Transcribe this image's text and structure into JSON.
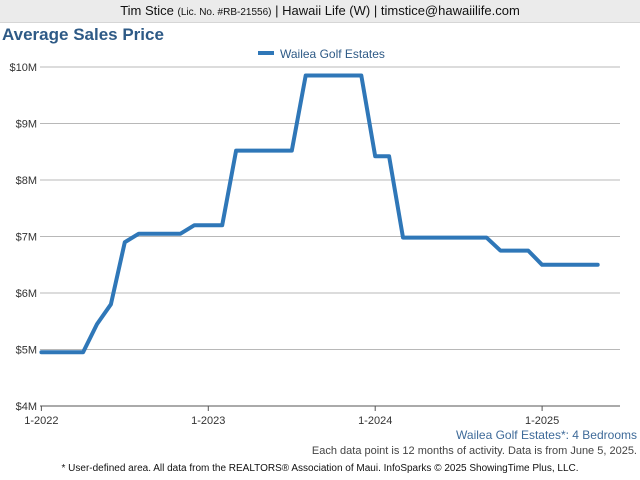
{
  "header": {
    "agent_name": "Tim Stice",
    "license": "(Lic. No. #RB-21556)",
    "company": "Hawaii Life (W)",
    "email": "timstice@hawaiilife.com",
    "separator": "|"
  },
  "chart_data": {
    "type": "line",
    "title": "Average Sales Price",
    "subtitle": "Wailea Golf Estates*: 4 Bedrooms",
    "note": "Each data point is 12 months of activity. Data is from June 5, 2025.",
    "xlabel": "",
    "ylabel": "",
    "legend_position": "top",
    "grid": true,
    "x_ticks": [
      "1-2022",
      "1-2023",
      "1-2024",
      "1-2025"
    ],
    "y_ticks": [
      "$4M",
      "$5M",
      "$6M",
      "$7M",
      "$8M",
      "$9M",
      "$10M"
    ],
    "ylim": [
      4000000,
      10000000
    ],
    "xlim": [
      "2022-01",
      "2025-06"
    ],
    "series": [
      {
        "name": "Wailea Golf Estates",
        "color": "#2f77b8",
        "points": [
          {
            "x": "2022-01",
            "y": 4950000
          },
          {
            "x": "2022-02",
            "y": 4950000
          },
          {
            "x": "2022-03",
            "y": 4950000
          },
          {
            "x": "2022-04",
            "y": 4950000
          },
          {
            "x": "2022-05",
            "y": 5450000
          },
          {
            "x": "2022-06",
            "y": 5800000
          },
          {
            "x": "2022-07",
            "y": 6900000
          },
          {
            "x": "2022-08",
            "y": 7050000
          },
          {
            "x": "2022-09",
            "y": 7050000
          },
          {
            "x": "2022-10",
            "y": 7050000
          },
          {
            "x": "2022-11",
            "y": 7050000
          },
          {
            "x": "2022-12",
            "y": 7200000
          },
          {
            "x": "2023-01",
            "y": 7200000
          },
          {
            "x": "2023-02",
            "y": 7200000
          },
          {
            "x": "2023-03",
            "y": 8520000
          },
          {
            "x": "2023-04",
            "y": 8520000
          },
          {
            "x": "2023-05",
            "y": 8520000
          },
          {
            "x": "2023-06",
            "y": 8520000
          },
          {
            "x": "2023-07",
            "y": 8520000
          },
          {
            "x": "2023-08",
            "y": 9850000
          },
          {
            "x": "2023-09",
            "y": 9850000
          },
          {
            "x": "2023-10",
            "y": 9850000
          },
          {
            "x": "2023-11",
            "y": 9850000
          },
          {
            "x": "2023-12",
            "y": 9850000
          },
          {
            "x": "2024-01",
            "y": 8420000
          },
          {
            "x": "2024-02",
            "y": 8420000
          },
          {
            "x": "2024-03",
            "y": 6980000
          },
          {
            "x": "2024-04",
            "y": 6980000
          },
          {
            "x": "2024-05",
            "y": 6980000
          },
          {
            "x": "2024-06",
            "y": 6980000
          },
          {
            "x": "2024-07",
            "y": 6980000
          },
          {
            "x": "2024-08",
            "y": 6980000
          },
          {
            "x": "2024-09",
            "y": 6980000
          },
          {
            "x": "2024-10",
            "y": 6750000
          },
          {
            "x": "2024-11",
            "y": 6750000
          },
          {
            "x": "2024-12",
            "y": 6750000
          },
          {
            "x": "2025-01",
            "y": 6500000
          },
          {
            "x": "2025-02",
            "y": 6500000
          },
          {
            "x": "2025-03",
            "y": 6500000
          },
          {
            "x": "2025-04",
            "y": 6500000
          },
          {
            "x": "2025-05",
            "y": 6500000
          }
        ]
      }
    ]
  },
  "footer": {
    "disclaimer": "* User-defined area. All data from the REALTORS® Association of Maui. InfoSparks © 2025 ShowingTime Plus, LLC."
  }
}
